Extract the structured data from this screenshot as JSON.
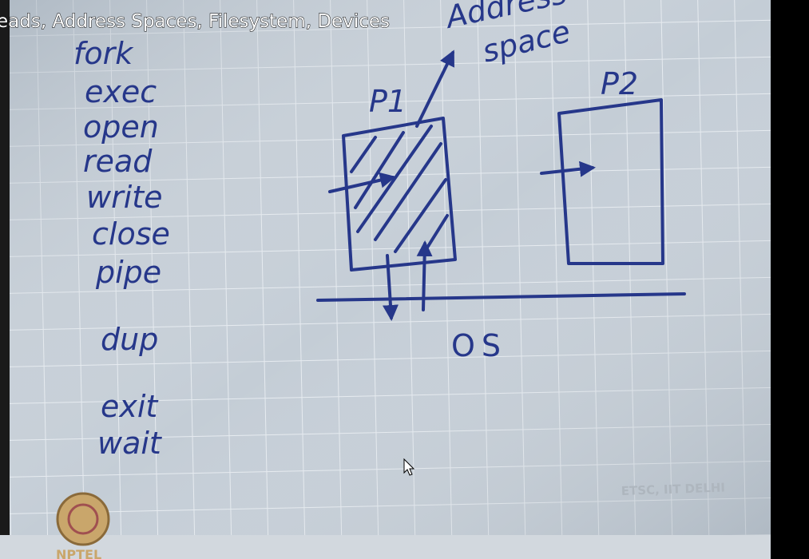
{
  "header": {
    "title": "eads, Address Spaces, Filesystem, Devices"
  },
  "syscalls": [
    "fork",
    "exec",
    "open",
    "read",
    "write",
    "close",
    "pipe",
    "dup",
    "exit",
    "wait"
  ],
  "diagram": {
    "address_space": [
      "Address",
      "space"
    ],
    "p1": "P1",
    "p2": "P2",
    "os": "OS"
  },
  "watermark": "ETSC, IIT DELHI",
  "logo": "NPTEL"
}
